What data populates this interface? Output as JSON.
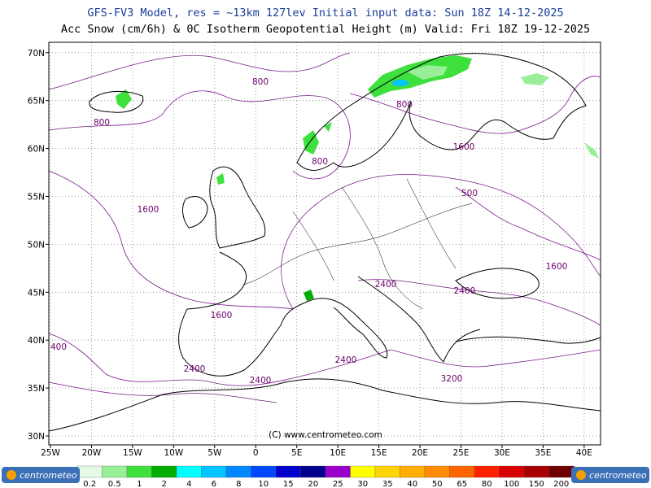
{
  "header": {
    "line1": "GFS-FV3 Model, res = ~13km 127lev   Initial input data: Sun 18Z 14-12-2025",
    "line2": "Acc Snow (cm/6h) & 0C Isotherm Geopotential Height (m)  Valid: Fri 18Z 19-12-2025"
  },
  "map": {
    "lon_ticks": [
      {
        "value": -25,
        "label": "25W"
      },
      {
        "value": -20,
        "label": "20W"
      },
      {
        "value": -15,
        "label": "15W"
      },
      {
        "value": -10,
        "label": "10W"
      },
      {
        "value": -5,
        "label": "5W"
      },
      {
        "value": 0,
        "label": "0"
      },
      {
        "value": 5,
        "label": "5E"
      },
      {
        "value": 10,
        "label": "10E"
      },
      {
        "value": 15,
        "label": "15E"
      },
      {
        "value": 20,
        "label": "20E"
      },
      {
        "value": 25,
        "label": "25E"
      },
      {
        "value": 30,
        "label": "30E"
      },
      {
        "value": 35,
        "label": "35E"
      },
      {
        "value": 40,
        "label": "40E"
      }
    ],
    "lat_ticks": [
      {
        "value": 30,
        "label": "30N"
      },
      {
        "value": 35,
        "label": "35N"
      },
      {
        "value": 40,
        "label": "40N"
      },
      {
        "value": 45,
        "label": "45N"
      },
      {
        "value": 50,
        "label": "50N"
      },
      {
        "value": 55,
        "label": "55N"
      },
      {
        "value": 60,
        "label": "60N"
      },
      {
        "value": 65,
        "label": "65N"
      },
      {
        "value": 70,
        "label": "70N"
      }
    ],
    "contour_labels": [
      800,
      800,
      800,
      800,
      1600,
      1600,
      500,
      1600,
      1600,
      2400,
      2400,
      2400,
      2400,
      2400,
      3200,
      400
    ],
    "watermark": "(C) www.centrometeo.com"
  },
  "colorbar": {
    "levels": [
      0.2,
      0.5,
      1,
      2,
      4,
      6,
      8,
      10,
      15,
      20,
      25,
      30,
      35,
      40,
      50,
      65,
      80,
      100,
      150,
      200
    ],
    "colors": [
      "#e4fae4",
      "#98ef98",
      "#3ee03e",
      "#00ad00",
      "#00ffff",
      "#00c4ff",
      "#0088ff",
      "#0048ff",
      "#0000cc",
      "#00008c",
      "#9a00cc",
      "#ffff00",
      "#ffd400",
      "#ffae00",
      "#ff8c00",
      "#ff6400",
      "#ff2000",
      "#d80000",
      "#a80000",
      "#700000"
    ]
  },
  "footer": {
    "logo_left": "centrometeo",
    "logo_right": "centrometeo"
  }
}
